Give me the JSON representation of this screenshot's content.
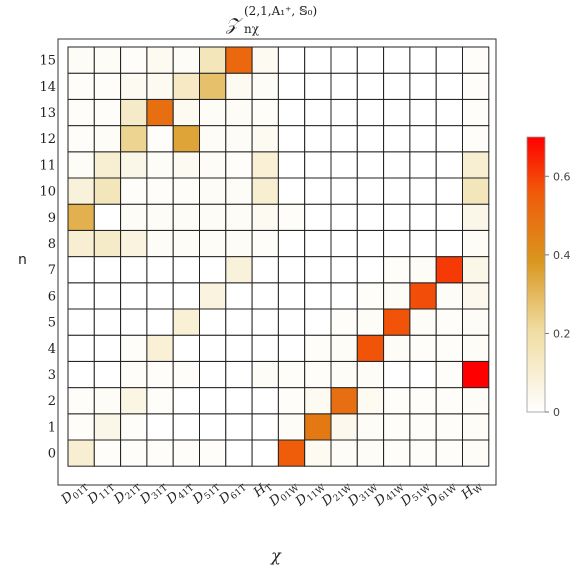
{
  "chart_data": {
    "type": "heatmap",
    "title": "𝒵",
    "title_superscript": "(2,1,A₁⁺, 𝕊₀)",
    "title_subscript": "nχ",
    "xlabel": "χ",
    "ylabel": "n",
    "x_categories": [
      {
        "base": "D",
        "sub": "01T"
      },
      {
        "base": "D",
        "sub": "11T"
      },
      {
        "base": "D",
        "sub": "21T"
      },
      {
        "base": "D",
        "sub": "31T"
      },
      {
        "base": "D",
        "sub": "41T"
      },
      {
        "base": "D",
        "sub": "51T"
      },
      {
        "base": "D",
        "sub": "61T"
      },
      {
        "base": "H",
        "sub": "T"
      },
      {
        "base": "D",
        "sub": "01W"
      },
      {
        "base": "D",
        "sub": "11W"
      },
      {
        "base": "D",
        "sub": "21W"
      },
      {
        "base": "D",
        "sub": "31W"
      },
      {
        "base": "D",
        "sub": "41W"
      },
      {
        "base": "D",
        "sub": "51W"
      },
      {
        "base": "D",
        "sub": "61W"
      },
      {
        "base": "H",
        "sub": "W"
      }
    ],
    "y_categories": [
      "0",
      "1",
      "2",
      "3",
      "4",
      "5",
      "6",
      "7",
      "8",
      "9",
      "10",
      "11",
      "12",
      "13",
      "14",
      "15"
    ],
    "colorbar": {
      "min": 0,
      "max": 0.7,
      "ticks": [
        "0",
        "0.2",
        "0.4",
        "0.6"
      ],
      "tick_values": [
        0,
        0.2,
        0.4,
        0.6
      ]
    },
    "colors": {
      "low": "#ffffff",
      "mid1": "#f0dca0",
      "mid2": "#d9961e",
      "mid3": "#f05a0a",
      "high": "#ff0000"
    },
    "grid": true,
    "values": [
      [
        0.1,
        0.01,
        0.01,
        0.01,
        0.01,
        0.01,
        0.0,
        0.0,
        0.55,
        0.03,
        0.02,
        0.02,
        0.01,
        0.01,
        0.01,
        0.02
      ],
      [
        0.01,
        0.05,
        0.01,
        0.0,
        0.0,
        0.0,
        0.0,
        0.0,
        0.02,
        0.47,
        0.04,
        0.02,
        0.01,
        0.01,
        0.01,
        0.02
      ],
      [
        0.01,
        0.02,
        0.06,
        0.01,
        0.0,
        0.0,
        0.0,
        0.0,
        0.01,
        0.03,
        0.5,
        0.03,
        0.01,
        0.01,
        0.01,
        0.02
      ],
      [
        0.0,
        0.0,
        0.01,
        0.01,
        0.01,
        0.0,
        0.0,
        0.02,
        0.01,
        0.01,
        0.02,
        0.02,
        0.0,
        0.0,
        0.01,
        0.7
      ],
      [
        0.0,
        0.0,
        0.01,
        0.09,
        0.0,
        0.0,
        0.0,
        0.0,
        0.0,
        0.01,
        0.02,
        0.57,
        0.02,
        0.01,
        0.01,
        0.02
      ],
      [
        0.0,
        0.0,
        0.0,
        0.0,
        0.09,
        0.0,
        0.0,
        0.0,
        0.0,
        0.0,
        0.01,
        0.02,
        0.57,
        0.02,
        0.01,
        0.02
      ],
      [
        0.0,
        0.0,
        0.0,
        0.0,
        0.0,
        0.07,
        0.0,
        0.0,
        0.0,
        0.0,
        0.0,
        0.01,
        0.02,
        0.58,
        0.02,
        0.04
      ],
      [
        0.0,
        0.0,
        0.0,
        0.0,
        0.0,
        0.0,
        0.08,
        0.0,
        0.0,
        0.0,
        0.0,
        0.0,
        0.01,
        0.02,
        0.61,
        0.05
      ],
      [
        0.1,
        0.12,
        0.07,
        0.02,
        0.02,
        0.02,
        0.02,
        0.01,
        0.0,
        0.0,
        0.0,
        0.0,
        0.0,
        0.0,
        0.0,
        0.02
      ],
      [
        0.32,
        0.0,
        0.02,
        0.02,
        0.02,
        0.02,
        0.02,
        0.03,
        0.01,
        0.0,
        0.0,
        0.0,
        0.0,
        0.0,
        0.0,
        0.05
      ],
      [
        0.08,
        0.15,
        0.01,
        0.01,
        0.01,
        0.02,
        0.02,
        0.1,
        0.0,
        0.0,
        0.0,
        0.0,
        0.0,
        0.0,
        0.0,
        0.15
      ],
      [
        0.02,
        0.1,
        0.05,
        0.02,
        0.03,
        0.02,
        0.01,
        0.09,
        0.0,
        0.0,
        0.0,
        0.0,
        0.0,
        0.0,
        0.0,
        0.1
      ],
      [
        0.01,
        0.02,
        0.23,
        0.01,
        0.35,
        0.02,
        0.02,
        0.03,
        0.0,
        0.0,
        0.0,
        0.0,
        0.0,
        0.0,
        0.0,
        0.01
      ],
      [
        0.01,
        0.01,
        0.12,
        0.5,
        0.03,
        0.02,
        0.02,
        0.01,
        0.0,
        0.0,
        0.0,
        0.0,
        0.0,
        0.0,
        0.0,
        0.01
      ],
      [
        0.01,
        0.01,
        0.03,
        0.03,
        0.13,
        0.28,
        0.03,
        0.02,
        0.0,
        0.0,
        0.0,
        0.0,
        0.0,
        0.0,
        0.0,
        0.01
      ],
      [
        0.02,
        0.02,
        0.01,
        0.03,
        0.02,
        0.15,
        0.52,
        0.03,
        0.0,
        0.0,
        0.0,
        0.0,
        0.0,
        0.0,
        0.0,
        0.01
      ]
    ]
  }
}
